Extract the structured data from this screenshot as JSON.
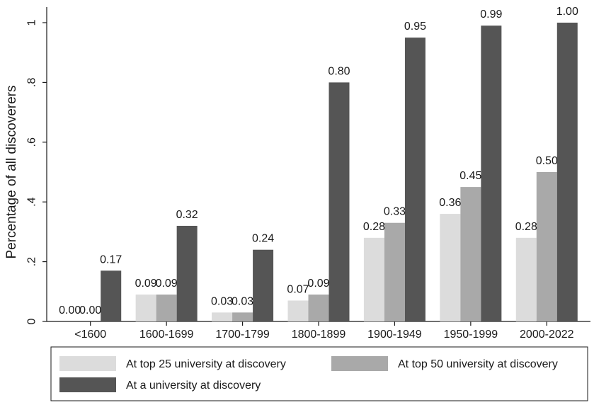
{
  "chart_data": {
    "type": "bar",
    "title": "",
    "xlabel": "",
    "ylabel": "Percentage of all discoverers",
    "ylim": [
      0,
      1
    ],
    "yticks": [
      {
        "value": 0,
        "label": "0"
      },
      {
        "value": 0.2,
        "label": ".2"
      },
      {
        "value": 0.4,
        "label": ".4"
      },
      {
        "value": 0.6,
        "label": ".6"
      },
      {
        "value": 0.8,
        "label": ".8"
      },
      {
        "value": 1,
        "label": "1"
      }
    ],
    "grid": false,
    "categories": [
      "<1600",
      "1600-1699",
      "1700-1799",
      "1800-1899",
      "1900-1949",
      "1950-1999",
      "2000-2022"
    ],
    "series": [
      {
        "name": "At top 25 university at discovery",
        "color": "#dcdcdc",
        "values": [
          0.0,
          0.09,
          0.03,
          0.07,
          0.28,
          0.36,
          0.28
        ],
        "labels": [
          "0.00",
          "0.09",
          "0.03",
          "0.07",
          "0.28",
          "0.36",
          "0.28"
        ]
      },
      {
        "name": "At top 50 university at discovery",
        "color": "#a9a9a9",
        "values": [
          0.0,
          0.09,
          0.03,
          0.09,
          0.33,
          0.45,
          0.5
        ],
        "labels": [
          "0.00",
          "0.09",
          "0.03",
          "0.09",
          "0.33",
          "0.45",
          "0.50"
        ]
      },
      {
        "name": "At a university at discovery",
        "color": "#555555",
        "values": [
          0.17,
          0.32,
          0.24,
          0.8,
          0.95,
          0.99,
          1.0
        ],
        "labels": [
          "0.17",
          "0.32",
          "0.24",
          "0.80",
          "0.95",
          "0.99",
          "1.00"
        ]
      }
    ],
    "legend_position": "bottom"
  }
}
